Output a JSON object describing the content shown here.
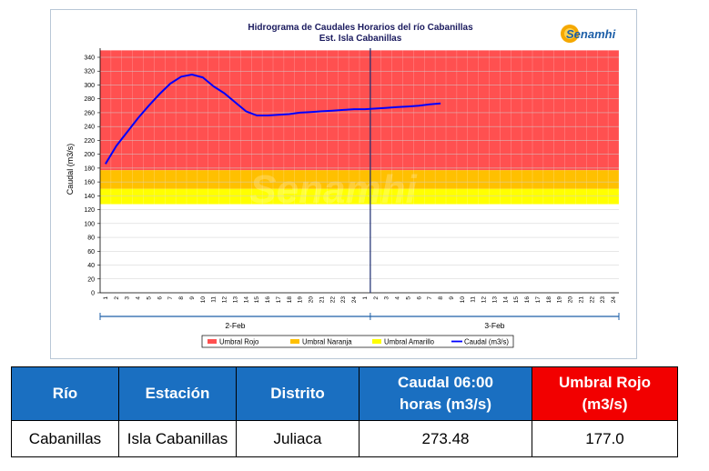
{
  "chart_data": {
    "type": "line",
    "title": "Hidrograma de Caudales Horarios del río Cabanillas",
    "subtitle": "Est. Isla Cabanillas",
    "logo_text": "Senamhi",
    "watermark": "Senamhi",
    "ylabel": "Caudal  (m3/s)",
    "ylim": [
      0,
      340
    ],
    "yticks": [
      0,
      20,
      40,
      60,
      80,
      100,
      120,
      140,
      160,
      180,
      200,
      220,
      240,
      260,
      280,
      300,
      320,
      340
    ],
    "x_hour_labels": [
      "1",
      "2",
      "3",
      "4",
      "5",
      "6",
      "7",
      "8",
      "9",
      "10",
      "11",
      "12",
      "13",
      "14",
      "15",
      "16",
      "17",
      "18",
      "19",
      "20",
      "21",
      "22",
      "23",
      "24",
      "1",
      "2",
      "3",
      "4",
      "5",
      "6",
      "7",
      "8",
      "9",
      "10",
      "11",
      "12",
      "13",
      "14",
      "15",
      "16",
      "17",
      "18",
      "19",
      "20",
      "21",
      "22",
      "23",
      "24"
    ],
    "day_labels": [
      "2-Feb",
      "3-Feb"
    ],
    "thresholds": [
      {
        "name": "Umbral Rojo",
        "from": 177,
        "to": 350,
        "color": "#ff5050"
      },
      {
        "name": "Umbral Naranja",
        "from": 150,
        "to": 177,
        "color": "#ffc000"
      },
      {
        "name": "Umbral Amarillo",
        "from": 128,
        "to": 150,
        "color": "#ffff00"
      }
    ],
    "series": [
      {
        "name": "Caudal (m3/s)",
        "color": "#0000ff",
        "x": [
          0,
          1,
          2,
          3,
          4,
          5,
          6,
          7,
          8,
          9,
          10,
          11,
          12,
          13,
          14,
          15,
          16,
          17,
          18,
          19,
          20,
          21,
          22,
          23,
          24,
          25,
          26,
          27,
          28,
          29,
          30,
          31
        ],
        "values": [
          186,
          212,
          232,
          252,
          270,
          287,
          302,
          312,
          315,
          311,
          298,
          288,
          275,
          262,
          256,
          256,
          257,
          258,
          260,
          261,
          262,
          263,
          264,
          265,
          265,
          266,
          267,
          268,
          269,
          270,
          272,
          273.48
        ]
      }
    ],
    "current_marker_x": 24.5,
    "legend_position": "bottom",
    "grid": true
  },
  "table": {
    "headers": [
      "Río",
      "Estación",
      "Distrito",
      "Caudal  06:00 horas (m3/s)",
      "Umbral Rojo (m3/s)"
    ],
    "row": [
      "Cabanillas",
      "Isla Cabanillas",
      "Juliaca",
      "273.48",
      "177.0"
    ],
    "header_colors": [
      "#1a6fc1",
      "#1a6fc1",
      "#1a6fc1",
      "#1a6fc1",
      "#f20000"
    ]
  }
}
